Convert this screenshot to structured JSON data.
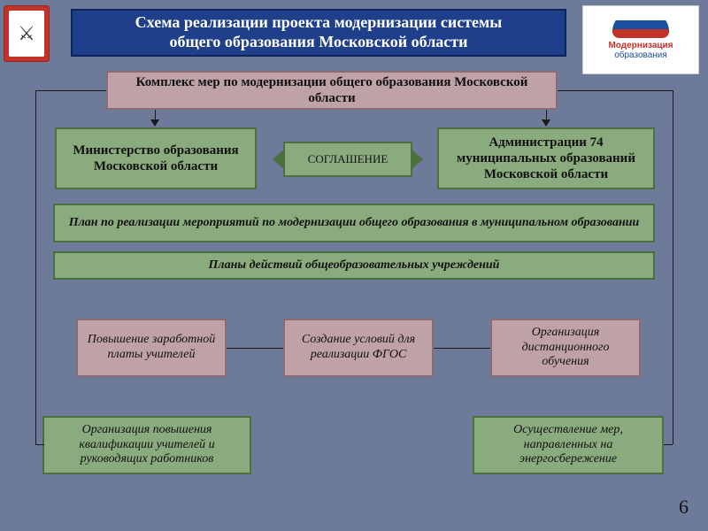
{
  "colors": {
    "slide_bg": "#6d7a9a",
    "header_bg": "#1f3f8a",
    "header_border": "#0d245a",
    "rose_bg": "#bfa1a8",
    "rose_border": "#8a6d74",
    "green_bg": "#8aab7d",
    "green_border": "#4c6f3e",
    "line": "#1a1a1a",
    "text": "#111111"
  },
  "fonts": {
    "header_size": 18,
    "body_size": 15,
    "small_size": 14
  },
  "header": {
    "line1": "Схема реализации проекта модернизации системы",
    "line2": "общего образования Московской области"
  },
  "emblem_alt": "Герб",
  "logo_small": "Модернизация",
  "logo_small2": "образования",
  "boxes": {
    "complex": "Комплекс мер по модернизации общего образования Московской области",
    "ministry_l1": "Министерство образования",
    "ministry_l2": "Московской области",
    "agreement": "СОГЛАШЕНИЕ",
    "admin": "Администрации 74 муниципальных образований Московской области",
    "plan": "План по реализации мероприятий по модернизации общего образования в муниципальном образовании",
    "plans_schools": "Планы действий общеобразовательных учреждений",
    "salary": "Повышение заработной платы учителей",
    "fgos": "Создание условий для реализации ФГОС",
    "distance": "Организация дистанционного обучения",
    "qualif": "Организация повышения квалификации учителей и руководящих работников",
    "energy": "Осуществление мер, направленных на энергосбережение"
  },
  "page_number": "6"
}
